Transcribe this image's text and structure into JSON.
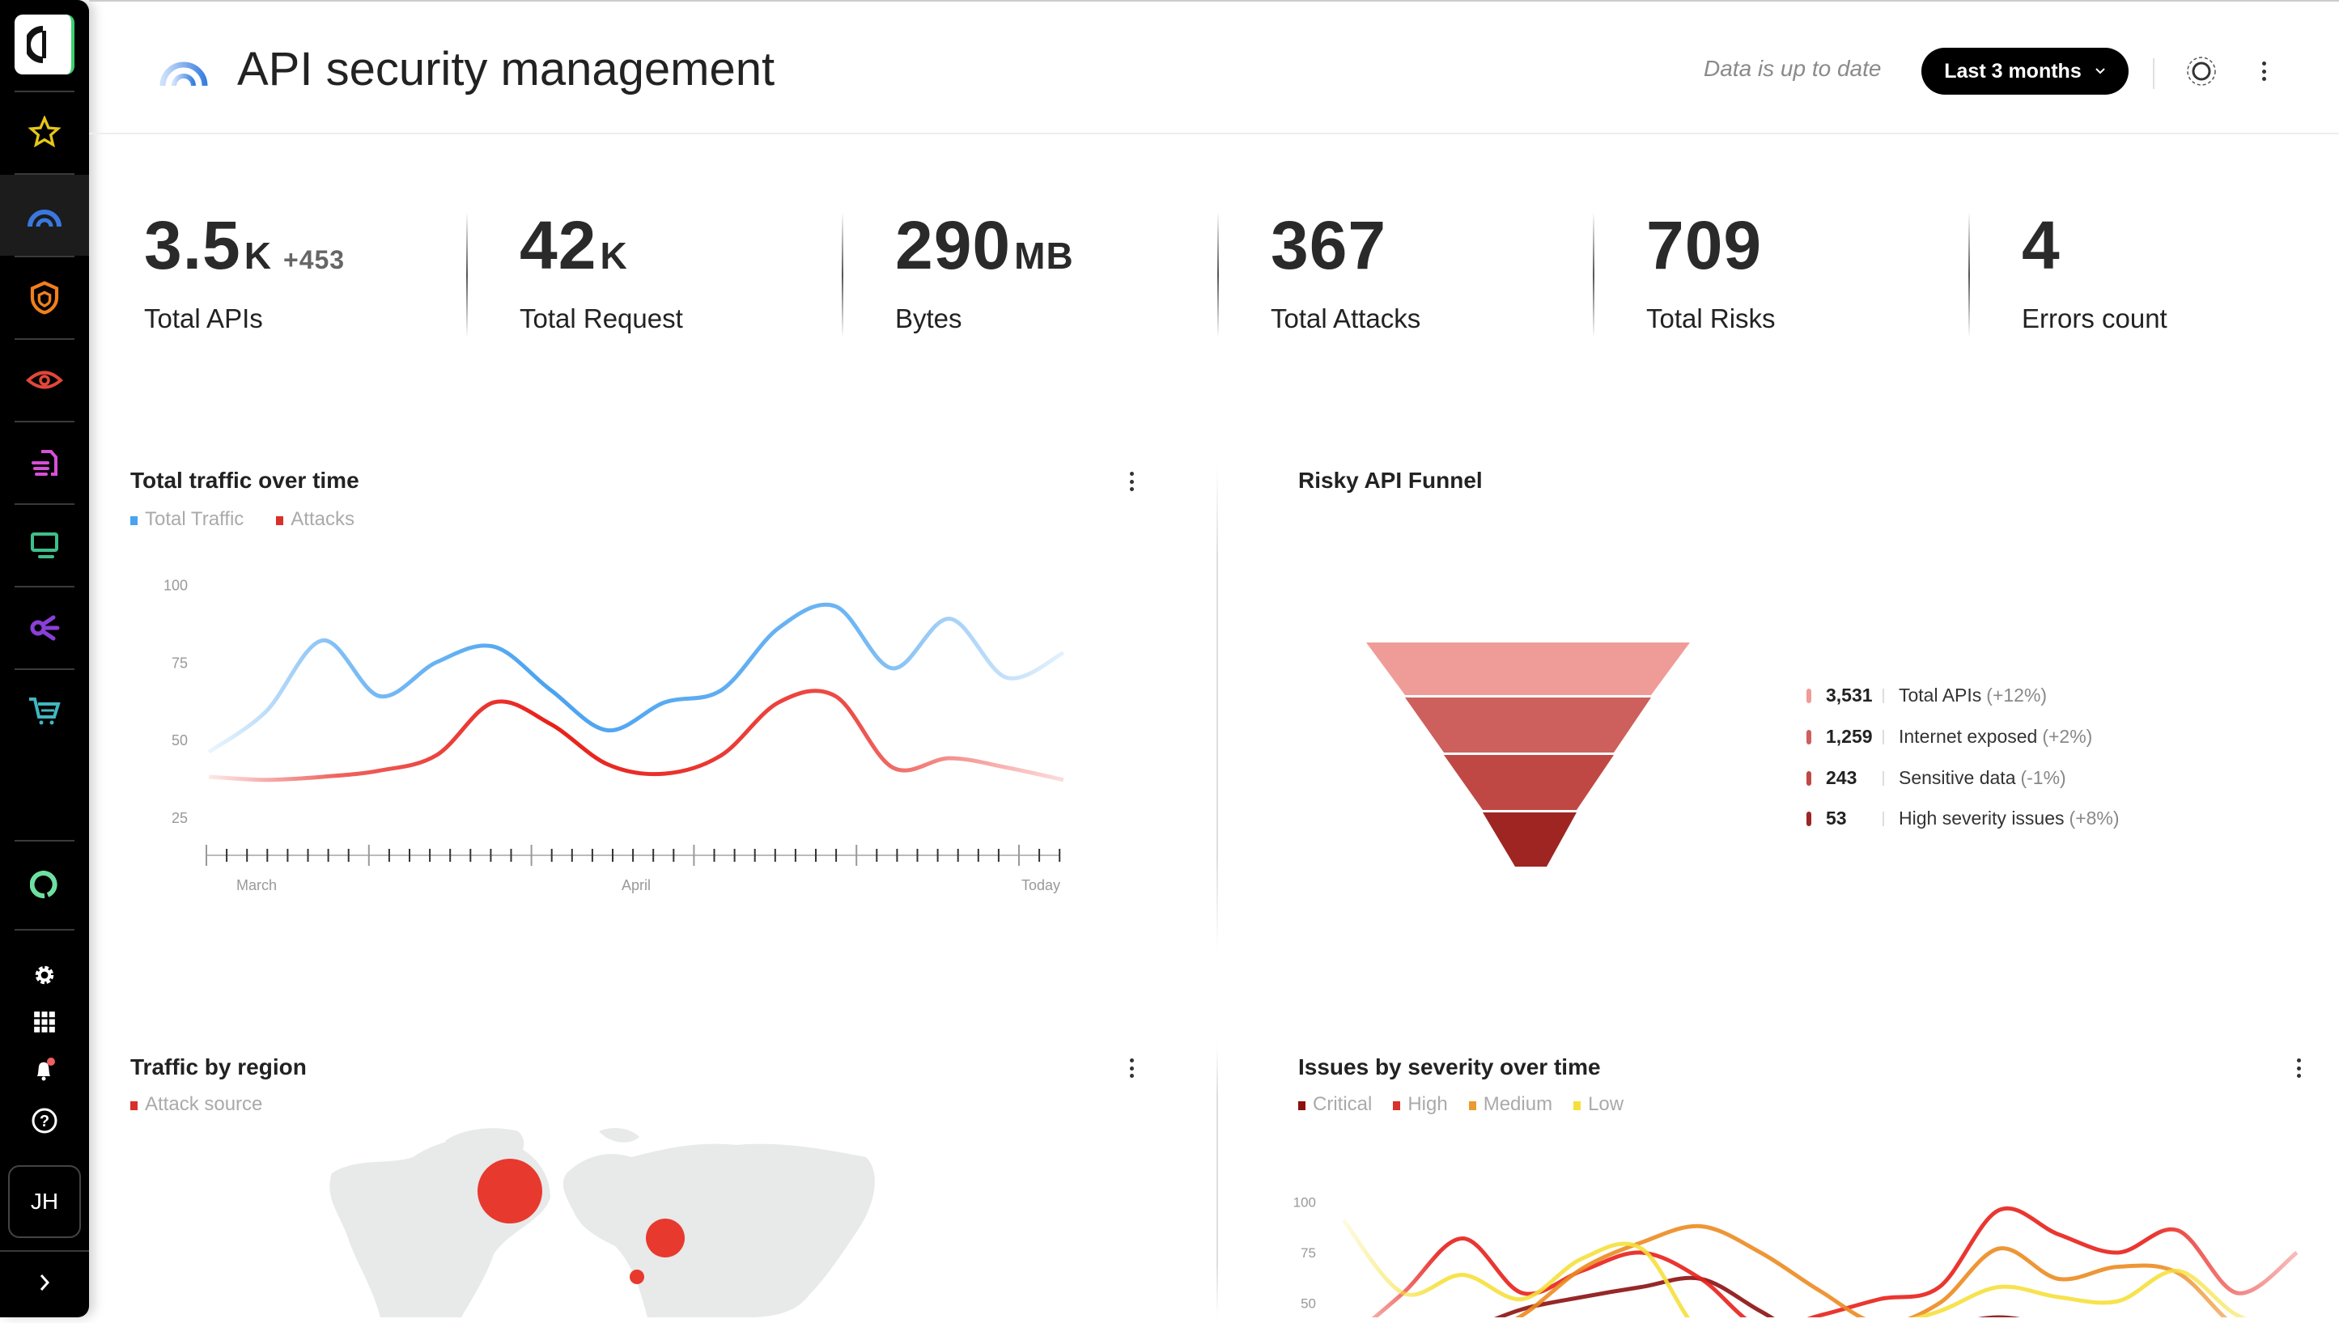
{
  "header": {
    "title": "API security management",
    "status": "Data is up to date",
    "range_select": "Last 3 months"
  },
  "sidebar": {
    "items": [
      {
        "icon": "star-icon",
        "color": "#e6c619"
      },
      {
        "icon": "dashboard-gauge-icon",
        "color": "#3a78e0",
        "active": true
      },
      {
        "icon": "shield-icon",
        "color": "#f07f1e"
      },
      {
        "icon": "eye-icon",
        "color": "#e0473a"
      },
      {
        "icon": "document-icon",
        "color": "#d84fd8"
      },
      {
        "icon": "monitor-icon",
        "color": "#3fbf8a"
      },
      {
        "icon": "share-nodes-icon",
        "color": "#8a3fd8"
      },
      {
        "icon": "cart-icon",
        "color": "#3fb8c0"
      },
      {
        "icon": "ring-icon",
        "color": "#6de0a0"
      }
    ],
    "bottom": [
      "gear-icon",
      "apps-grid-icon",
      "bell-icon",
      "help-icon"
    ],
    "avatar": "JH"
  },
  "kpis": [
    {
      "value": "3.5",
      "unit": "K",
      "delta": "+453",
      "label": "Total APIs"
    },
    {
      "value": "42",
      "unit": "K",
      "delta": "",
      "label": "Total Request"
    },
    {
      "value": "290",
      "unit": "MB",
      "delta": "",
      "label": "Bytes"
    },
    {
      "value": "367",
      "unit": "",
      "delta": "",
      "label": "Total Attacks"
    },
    {
      "value": "709",
      "unit": "",
      "delta": "",
      "label": "Total Risks"
    },
    {
      "value": "4",
      "unit": "",
      "delta": "",
      "label": "Errors count"
    }
  ],
  "traffic": {
    "title": "Total traffic over time",
    "chart_data": {
      "type": "line",
      "ylim": [
        25,
        100
      ],
      "yticks": [
        "100",
        "75",
        "50",
        "25"
      ],
      "xticks": [
        "March",
        "April",
        "Today"
      ],
      "series": [
        {
          "name": "Total Traffic",
          "color": "#4aa3f0",
          "values": [
            46,
            59,
            82,
            64,
            75,
            80,
            66,
            53,
            62,
            66,
            86,
            93,
            73,
            89,
            70,
            78
          ]
        },
        {
          "name": "Attacks",
          "color": "#e8201a",
          "values": [
            38,
            37,
            38,
            40,
            45,
            62,
            55,
            42,
            39,
            45,
            62,
            64,
            41,
            44,
            41,
            37
          ]
        }
      ]
    }
  },
  "funnel": {
    "title": "Risky API Funnel",
    "chart_data": {
      "type": "funnel",
      "stages": [
        {
          "value": "3,531",
          "label": "Total APIs",
          "change": "(+12%)",
          "color": "#ef9c98"
        },
        {
          "value": "1,259",
          "label": "Internet exposed",
          "change": "(+2%)",
          "color": "#cd605c"
        },
        {
          "value": "243",
          "label": "Sensitive data",
          "change": "(-1%)",
          "color": "#c04844"
        },
        {
          "value": "53",
          "label": "High severity issues",
          "change": "(+8%)",
          "color": "#9e2522"
        }
      ]
    }
  },
  "region": {
    "title": "Traffic by region",
    "legend": "Attack source",
    "legend_color": "#e8392f"
  },
  "issues": {
    "title": "Issues by severity over time",
    "chart_data": {
      "type": "line",
      "yticks": [
        "100",
        "75",
        "50"
      ],
      "series": [
        {
          "name": "Critical",
          "color": "#8b1010",
          "values": [
            20,
            28,
            36,
            47,
            53,
            58,
            62,
            46,
            30,
            32,
            38,
            43,
            38,
            32,
            30,
            28,
            25
          ]
        },
        {
          "name": "High",
          "color": "#e8201a",
          "values": [
            30,
            55,
            82,
            55,
            66,
            75,
            62,
            38,
            44,
            52,
            58,
            96,
            84,
            75,
            86,
            55,
            75
          ]
        },
        {
          "name": "Medium",
          "color": "#ec8a20",
          "values": [
            20,
            22,
            30,
            44,
            67,
            80,
            88,
            75,
            56,
            40,
            50,
            77,
            62,
            68,
            65,
            38,
            30
          ]
        },
        {
          "name": "Low",
          "color": "#f5e03a",
          "values": [
            91,
            55,
            64,
            52,
            72,
            77,
            35,
            30,
            32,
            38,
            46,
            58,
            53,
            51,
            66,
            44,
            35
          ]
        }
      ]
    }
  }
}
